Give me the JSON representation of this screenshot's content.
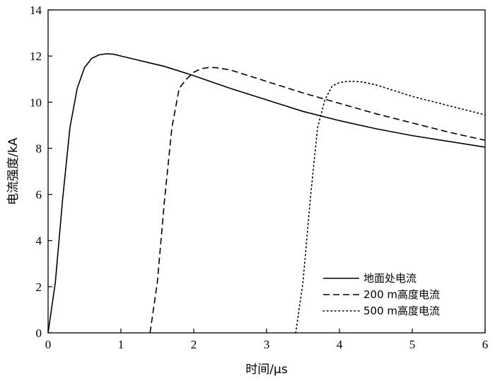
{
  "chart_data": {
    "type": "line",
    "title": "",
    "xlabel": "时间/μs",
    "ylabel": "电流强度/kA",
    "xlim": [
      0,
      6
    ],
    "ylim": [
      0,
      14
    ],
    "xticks": [
      0,
      1,
      2,
      3,
      4,
      5,
      6
    ],
    "yticks": [
      0,
      2,
      4,
      6,
      8,
      10,
      12,
      14
    ],
    "grid": false,
    "legend_position": "bottom-right",
    "series": [
      {
        "name": "地面处电流",
        "style": "solid",
        "color": "#000000",
        "x": [
          0.0,
          0.1,
          0.2,
          0.3,
          0.4,
          0.5,
          0.6,
          0.7,
          0.8,
          0.9,
          1.0,
          1.2,
          1.4,
          1.6,
          1.8,
          2.0,
          2.5,
          3.0,
          3.5,
          4.0,
          4.5,
          5.0,
          5.5,
          6.0
        ],
        "y": [
          0.0,
          2.2,
          5.8,
          8.9,
          10.6,
          11.5,
          11.9,
          12.05,
          12.1,
          12.08,
          12.0,
          11.85,
          11.7,
          11.55,
          11.35,
          11.15,
          10.6,
          10.1,
          9.6,
          9.2,
          8.85,
          8.55,
          8.3,
          8.05
        ]
      },
      {
        "name": "200 m高度电流",
        "style": "dashed",
        "color": "#000000",
        "x": [
          1.4,
          1.5,
          1.6,
          1.7,
          1.8,
          1.9,
          2.0,
          2.1,
          2.2,
          2.3,
          2.4,
          2.5,
          2.6,
          2.8,
          3.0,
          3.5,
          4.0,
          4.5,
          5.0,
          5.5,
          6.0
        ],
        "y": [
          0.0,
          2.2,
          5.8,
          8.9,
          10.6,
          11.0,
          11.3,
          11.45,
          11.5,
          11.5,
          11.45,
          11.4,
          11.3,
          11.1,
          10.9,
          10.4,
          9.95,
          9.5,
          9.1,
          8.7,
          8.35
        ]
      },
      {
        "name": "500 m高度电流",
        "style": "dotted",
        "color": "#000000",
        "x": [
          3.4,
          3.5,
          3.6,
          3.7,
          3.8,
          3.9,
          4.0,
          4.1,
          4.2,
          4.3,
          4.4,
          4.5,
          4.6,
          4.8,
          5.0,
          5.5,
          6.0
        ],
        "y": [
          0.0,
          2.2,
          5.8,
          8.9,
          10.1,
          10.7,
          10.85,
          10.9,
          10.9,
          10.88,
          10.82,
          10.75,
          10.65,
          10.45,
          10.25,
          9.85,
          9.45
        ]
      }
    ]
  }
}
